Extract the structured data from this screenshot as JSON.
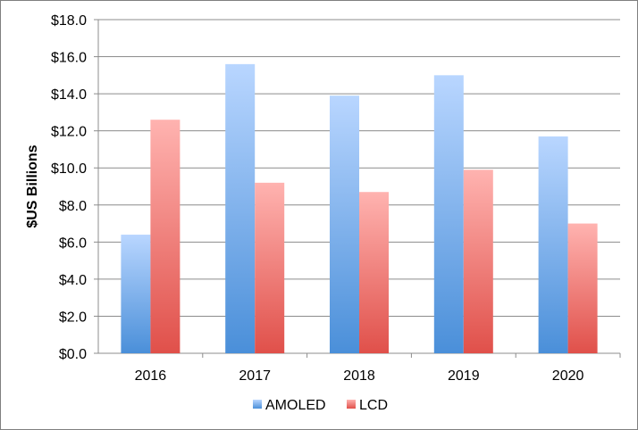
{
  "chart_data": {
    "type": "bar",
    "title": "",
    "xlabel": "",
    "ylabel": "$US Billions",
    "categories": [
      "2016",
      "2017",
      "2018",
      "2019",
      "2020"
    ],
    "series": [
      {
        "name": "AMOLED",
        "values": [
          6.4,
          15.6,
          13.9,
          15.0,
          11.7
        ],
        "color": "#5b9bd5"
      },
      {
        "name": "LCD",
        "values": [
          12.6,
          9.2,
          8.7,
          9.9,
          7.0
        ],
        "color": "#e0504a"
      }
    ],
    "ylim": [
      0,
      18
    ],
    "yticks": [
      "$0.0",
      "$2.0",
      "$4.0",
      "$6.0",
      "$8.0",
      "$10.0",
      "$12.0",
      "$14.0",
      "$16.0",
      "$18.0"
    ],
    "grid": true,
    "legend_position": "bottom"
  }
}
